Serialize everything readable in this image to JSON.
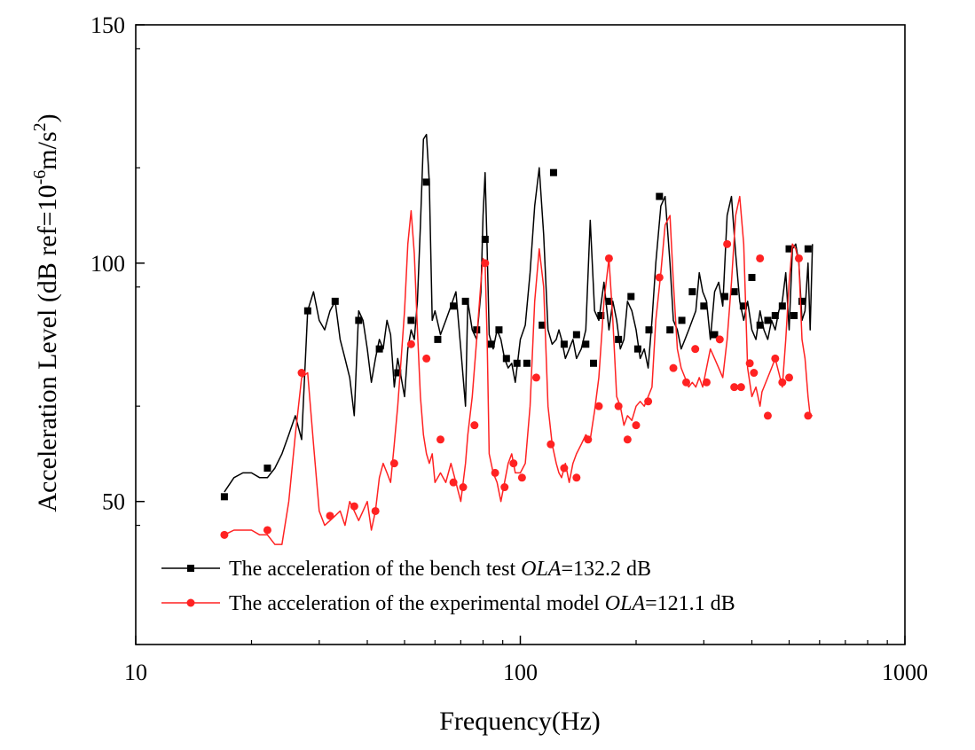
{
  "chart_data": {
    "type": "line",
    "title": "",
    "xlabel": "Frequency(Hz)",
    "ylabel": "Acceleration Level (dB ref=10",
    "ylabel_sup1": "-6",
    "ylabel_mid": "m/s",
    "ylabel_sup2": "2",
    "ylabel_end": ")",
    "x_scale": "log",
    "xlim": [
      10,
      1000
    ],
    "ylim": [
      20,
      150
    ],
    "x_ticks": [
      10,
      100,
      1000
    ],
    "x_tick_labels": [
      "10",
      "100",
      "1000"
    ],
    "y_ticks": [
      50,
      100,
      150
    ],
    "y_tick_labels": [
      "50",
      "100",
      "150"
    ],
    "grid": false,
    "legend_position": "bottom-left",
    "series": [
      {
        "name": "The acceleration of the bench test ",
        "name_italic": "OLA",
        "name_tail": "=132.2 dB",
        "color": "#000000",
        "marker": "square",
        "x": [
          17,
          18,
          19,
          20,
          21,
          22,
          23,
          24,
          25,
          26,
          27,
          28,
          29,
          30,
          31,
          32,
          33,
          34,
          35,
          36,
          37,
          38,
          39,
          40,
          41,
          42,
          43,
          44,
          45,
          46,
          47,
          48,
          49,
          50,
          51,
          52,
          53,
          54,
          55,
          56,
          57,
          58,
          59,
          60,
          62,
          64,
          66,
          68,
          70,
          72,
          73,
          75,
          77,
          79,
          80,
          81,
          82,
          83,
          85,
          87,
          89,
          91,
          93,
          95,
          97,
          100,
          103,
          106,
          109,
          112,
          115,
          118,
          121,
          124,
          126,
          128,
          131,
          134,
          137,
          140,
          144,
          148,
          152,
          156,
          160,
          165,
          170,
          174,
          178,
          182,
          186,
          190,
          195,
          200,
          205,
          210,
          215,
          220,
          225,
          232,
          238,
          245,
          250,
          256,
          262,
          268,
          274,
          280,
          286,
          292,
          298,
          305,
          312,
          320,
          328,
          336,
          345,
          354,
          363,
          372,
          381,
          390,
          400,
          410,
          420,
          425,
          430,
          440,
          450,
          460,
          470,
          480,
          490,
          500,
          510,
          520,
          530,
          540,
          550,
          560,
          567,
          575
        ],
        "y": [
          52,
          55,
          56,
          56,
          55,
          55,
          57,
          60,
          64,
          68,
          63,
          90,
          94,
          88,
          86,
          90,
          92,
          84,
          80,
          76,
          68,
          90,
          88,
          82,
          75,
          80,
          84,
          82,
          88,
          85,
          74,
          80,
          76,
          72,
          82,
          86,
          84,
          92,
          108,
          126,
          127,
          117,
          88,
          90,
          85,
          88,
          91,
          94,
          82,
          70,
          92,
          86,
          84,
          94,
          110,
          119,
          103,
          85,
          82,
          86,
          84,
          80,
          78,
          79,
          75,
          84,
          87,
          98,
          112,
          120,
          106,
          86,
          83,
          84,
          86,
          84,
          80,
          82,
          84,
          80,
          82,
          86,
          109,
          90,
          88,
          96,
          86,
          92,
          88,
          82,
          84,
          92,
          90,
          86,
          80,
          82,
          78,
          88,
          100,
          112,
          114,
          100,
          88,
          86,
          82,
          84,
          86,
          88,
          90,
          98,
          94,
          92,
          84,
          94,
          96,
          91,
          110,
          114,
          102,
          92,
          88,
          92,
          86,
          84,
          90,
          88,
          86,
          84,
          88,
          86,
          90,
          92,
          98,
          86,
          103,
          104,
          100,
          88,
          90,
          100,
          86,
          104
        ],
        "marker_x": [
          17,
          22,
          28,
          33,
          38,
          43,
          48,
          52,
          57,
          61,
          67,
          72,
          77,
          81,
          84,
          88,
          92,
          98,
          104,
          114,
          122,
          130,
          140,
          148,
          155,
          162,
          170,
          180,
          194,
          202,
          216,
          230,
          245,
          263,
          280,
          300,
          320,
          340,
          360,
          380,
          400,
          420,
          440,
          460,
          480,
          500,
          515,
          540,
          560
        ],
        "marker_y": [
          51,
          57,
          90,
          92,
          88,
          82,
          77,
          88,
          117,
          84,
          91,
          92,
          86,
          105,
          83,
          86,
          80,
          79,
          79,
          87,
          119,
          83,
          85,
          83,
          79,
          89,
          92,
          84,
          93,
          82,
          86,
          114,
          86,
          88,
          94,
          91,
          85,
          93,
          94,
          91,
          97,
          87,
          88,
          89,
          91,
          103,
          89,
          92,
          103
        ]
      },
      {
        "name": "The acceleration of the experimental model ",
        "name_italic": "OLA",
        "name_tail": "=121.1 dB",
        "color": "#ff2222",
        "marker": "circle",
        "x": [
          17,
          18,
          19,
          20,
          21,
          22,
          23,
          24,
          25,
          26,
          27,
          28,
          29,
          30,
          31,
          32,
          33,
          34,
          35,
          36,
          37,
          38,
          39,
          40,
          41,
          42,
          43,
          44,
          45,
          46,
          47,
          48,
          49,
          50,
          51,
          52,
          53,
          54,
          55,
          56,
          57,
          58,
          59,
          60,
          62,
          64,
          66,
          68,
          70,
          72,
          73,
          75,
          77,
          79,
          80,
          81,
          82,
          83,
          85,
          87,
          89,
          91,
          93,
          95,
          97,
          100,
          103,
          106,
          109,
          112,
          115,
          118,
          121,
          124,
          126,
          128,
          131,
          134,
          137,
          140,
          144,
          148,
          152,
          156,
          160,
          165,
          170,
          174,
          178,
          182,
          186,
          190,
          195,
          200,
          205,
          210,
          215,
          220,
          225,
          232,
          238,
          245,
          250,
          256,
          262,
          268,
          274,
          280,
          286,
          292,
          298,
          305,
          312,
          320,
          328,
          336,
          345,
          354,
          363,
          372,
          381,
          390,
          400,
          410,
          420,
          425,
          430,
          440,
          450,
          460,
          470,
          480,
          490,
          500,
          510,
          520,
          530,
          540,
          550,
          560,
          567,
          575
        ],
        "y": [
          43,
          44,
          44,
          44,
          43,
          43,
          41,
          41,
          50,
          64,
          76,
          77,
          62,
          48,
          45,
          46,
          47,
          48,
          45,
          50,
          48,
          46,
          48,
          50,
          44,
          48,
          55,
          58,
          56,
          54,
          62,
          70,
          80,
          90,
          104,
          111,
          102,
          86,
          72,
          64,
          60,
          58,
          60,
          54,
          56,
          54,
          58,
          54,
          50,
          58,
          64,
          72,
          84,
          96,
          101,
          100,
          84,
          60,
          56,
          54,
          50,
          54,
          58,
          60,
          56,
          56,
          58,
          70,
          92,
          103,
          95,
          70,
          62,
          58,
          56,
          55,
          58,
          54,
          58,
          60,
          62,
          64,
          63,
          69,
          76,
          92,
          101,
          88,
          72,
          70,
          66,
          68,
          67,
          70,
          71,
          70,
          72,
          74,
          88,
          98,
          108,
          110,
          96,
          82,
          78,
          76,
          74,
          75,
          74,
          76,
          74,
          78,
          82,
          80,
          78,
          76,
          84,
          96,
          110,
          114,
          104,
          78,
          72,
          74,
          70,
          73,
          74,
          76,
          78,
          80,
          77,
          74,
          84,
          96,
          104,
          103,
          100,
          84,
          80,
          72,
          68,
          68
        ],
        "marker_x": [
          17,
          22,
          27,
          32,
          37,
          42,
          47,
          52,
          57,
          62,
          67,
          71,
          76,
          81,
          86,
          91,
          96,
          101,
          110,
          120,
          130,
          140,
          150,
          160,
          170,
          180,
          190,
          200,
          215,
          230,
          250,
          270,
          285,
          305,
          330,
          345,
          360,
          375,
          395,
          405,
          420,
          440,
          460,
          480,
          500,
          530,
          560
        ],
        "marker_y": [
          43,
          44,
          77,
          47,
          49,
          48,
          58,
          83,
          80,
          63,
          54,
          53,
          66,
          100,
          56,
          53,
          58,
          55,
          76,
          62,
          57,
          55,
          63,
          70,
          101,
          70,
          63,
          66,
          71,
          97,
          78,
          75,
          82,
          75,
          84,
          104,
          74,
          74,
          79,
          77,
          101,
          68,
          80,
          75,
          76,
          101,
          68
        ]
      }
    ]
  }
}
